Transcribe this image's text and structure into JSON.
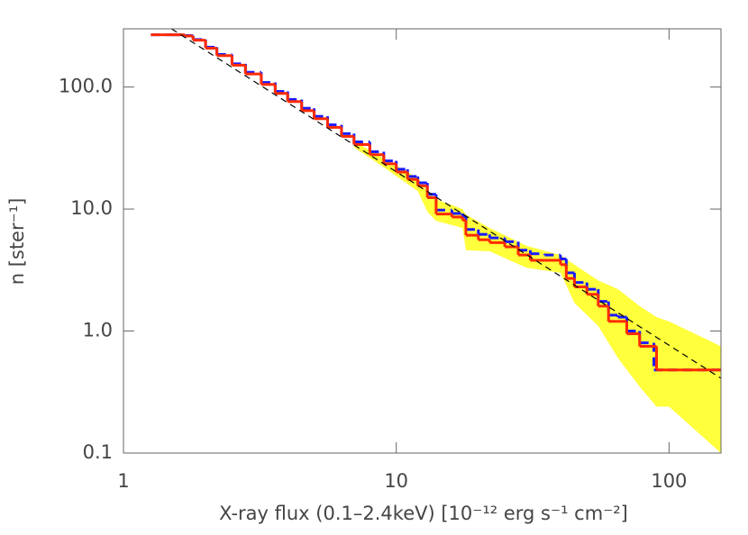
{
  "chart_data": {
    "type": "step",
    "xlabel": "X-ray flux (0.1–2.4keV)    [10⁻¹²  erg s⁻¹ cm⁻²]",
    "ylabel": "n [ster⁻¹]",
    "xscale": "log",
    "yscale": "log",
    "xlim": [
      1,
      155
    ],
    "ylim": [
      0.1,
      300
    ],
    "xticks": [
      1,
      10,
      100
    ],
    "yticks": [
      {
        "value": 100,
        "label": "100.0"
      },
      {
        "value": 10,
        "label": "10.0"
      },
      {
        "value": 1,
        "label": "1.0"
      },
      0.1
    ],
    "band": {
      "color": "#ffff3c",
      "x": [
        7,
        9,
        12,
        13,
        14,
        17.5,
        18,
        22,
        30,
        40,
        45,
        55,
        65,
        78,
        90,
        100,
        155
      ],
      "lower": [
        32,
        22,
        14,
        9.5,
        8,
        7,
        4.6,
        4.5,
        3.3,
        3.0,
        1.7,
        1.1,
        0.6,
        0.35,
        0.24,
        0.24,
        0.1
      ],
      "upper": [
        36,
        26,
        18,
        14,
        12,
        10,
        9,
        7,
        5,
        4.2,
        3.5,
        2.6,
        2.2,
        1.6,
        1.3,
        1.2,
        0.75
      ]
    },
    "series": [
      {
        "color": "#1a1aff",
        "dash": true,
        "x": [
          1.26,
          1.5,
          1.68,
          1.8,
          2.0,
          2.2,
          2.5,
          2.8,
          3.2,
          3.6,
          4.0,
          4.5,
          5.0,
          5.6,
          6.3,
          7.0,
          8.0,
          9.0,
          10,
          11,
          12,
          13,
          14,
          16,
          17.5,
          18,
          20,
          22,
          25,
          28,
          31,
          35,
          40,
          42,
          45,
          50,
          55,
          60,
          65,
          70,
          78,
          88
        ],
        "values": [
          268,
          268,
          264,
          245,
          212,
          185,
          155,
          132,
          109,
          92,
          79,
          67,
          57.5,
          49,
          41.5,
          35.5,
          29.5,
          24.8,
          21.2,
          18.5,
          16.4,
          13.2,
          9.8,
          9.2,
          8.7,
          6.8,
          6.2,
          5.8,
          5.4,
          4.6,
          4.3,
          4.2,
          3.9,
          3.0,
          2.5,
          2.2,
          1.75,
          1.35,
          1.3,
          1.0,
          0.8,
          0.48
        ]
      },
      {
        "color": "#ff2a00",
        "dash": false,
        "x": [
          1.26,
          1.5,
          1.68,
          1.8,
          2.0,
          2.2,
          2.5,
          2.8,
          3.2,
          3.6,
          4.0,
          4.5,
          5.0,
          5.6,
          6.3,
          7.0,
          8.0,
          9.0,
          10,
          11,
          12,
          13,
          14,
          16,
          17.5,
          18,
          20,
          22,
          25,
          28,
          31,
          35,
          40,
          42,
          45,
          50,
          55,
          60,
          65,
          70,
          78,
          90
        ],
        "values": [
          268,
          268,
          262,
          242,
          208,
          181,
          151,
          128,
          105,
          88.6,
          76,
          64,
          55,
          46.7,
          39.4,
          33.8,
          27.9,
          23.5,
          20.1,
          17.5,
          15.5,
          12.4,
          9.1,
          8.6,
          8.1,
          6.1,
          5.6,
          5.3,
          4.9,
          4.2,
          3.8,
          3.8,
          3.5,
          2.7,
          2.3,
          2.0,
          1.6,
          1.2,
          1.2,
          0.95,
          0.75,
          0.48
        ]
      },
      {
        "color": "#000000",
        "dash": true,
        "thin": true,
        "x": [
          1.5,
          155
        ],
        "values": [
          300,
          0.41
        ]
      }
    ]
  }
}
